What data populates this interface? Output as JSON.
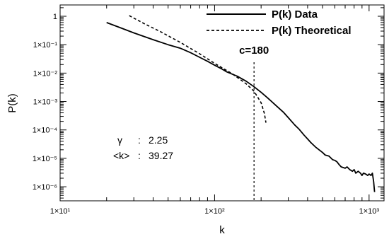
{
  "chart_data": {
    "type": "line",
    "title": "",
    "xlabel": "k",
    "ylabel": "P(k)",
    "x_scale": "log",
    "y_scale": "log",
    "xlim": [
      10,
      1250
    ],
    "ylim": [
      3.2e-07,
      2.5
    ],
    "x_ticks": [
      {
        "value": 10,
        "label": "1×10¹"
      },
      {
        "value": 100,
        "label": "1×10²"
      },
      {
        "value": 1000,
        "label": "1×10³"
      }
    ],
    "y_ticks": [
      {
        "value": 1,
        "label": "1"
      },
      {
        "value": 0.1,
        "label": "1×10⁻¹"
      },
      {
        "value": 0.01,
        "label": "1×10⁻²"
      },
      {
        "value": 0.001,
        "label": "1×10⁻³"
      },
      {
        "value": 0.0001,
        "label": "1×10⁻⁴"
      },
      {
        "value": 1e-05,
        "label": "1×10⁻⁵"
      },
      {
        "value": 1e-06,
        "label": "1×10⁻⁶"
      }
    ],
    "grid": false,
    "legend_position": "top-right",
    "series": [
      {
        "name": "P(k) Data",
        "style": "solid",
        "x": [
          20,
          25,
          30,
          40,
          50,
          60,
          70,
          80,
          90,
          100,
          110,
          120,
          140,
          160,
          180,
          200,
          220,
          250,
          280,
          300,
          330,
          350,
          380,
          400,
          420,
          450,
          480,
          500,
          520,
          550,
          580,
          600,
          620,
          640,
          660,
          700,
          720,
          750,
          780,
          800,
          820,
          850,
          880,
          900,
          920,
          950,
          980,
          1000,
          1030,
          1050,
          1070,
          1080,
          1085
        ],
        "y": [
          0.6,
          0.38,
          0.26,
          0.15,
          0.1,
          0.075,
          0.052,
          0.036,
          0.026,
          0.019,
          0.0145,
          0.011,
          0.0078,
          0.0052,
          0.0033,
          0.0021,
          0.00135,
          0.00072,
          0.00041,
          0.00027,
          0.00015,
          0.00011,
          6.5e-05,
          4.8e-05,
          3.6e-05,
          2.5e-05,
          1.9e-05,
          1.6e-05,
          1.3e-05,
          1.2e-05,
          9e-06,
          8.5e-06,
          7.5e-06,
          6e-06,
          5e-06,
          4.5e-06,
          5e-06,
          4e-06,
          3.5e-06,
          4e-06,
          3e-06,
          3.5e-06,
          3e-06,
          2.5e-06,
          3e-06,
          2.8e-06,
          2.5e-06,
          2.8e-06,
          2.5e-06,
          3e-06,
          1.5e-06,
          9e-07,
          6.5e-07
        ]
      },
      {
        "name": "P(k) Theoretical",
        "style": "dashed",
        "x": [
          28,
          35,
          45,
          60,
          80,
          100,
          130,
          160,
          180,
          200,
          210,
          215
        ],
        "y": [
          1.05,
          0.55,
          0.28,
          0.12,
          0.048,
          0.022,
          0.0095,
          0.0042,
          0.0023,
          0.0009,
          0.00038,
          0.00018
        ]
      }
    ],
    "annotations": [
      {
        "label": "γ",
        "separator": ":",
        "value": "2.25"
      },
      {
        "label": "<k>",
        "separator": ":",
        "value": "39.27"
      }
    ],
    "marker_line": {
      "x": 180,
      "label": "c=180"
    }
  }
}
